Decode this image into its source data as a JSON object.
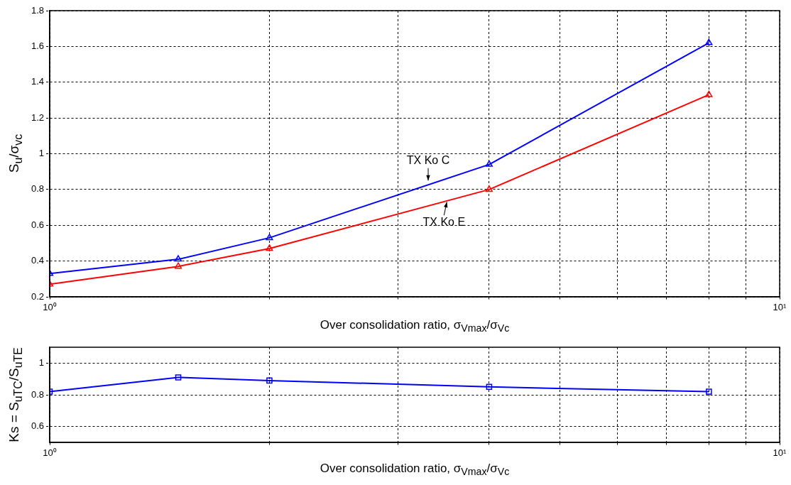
{
  "chart_data": [
    {
      "type": "line",
      "xlabel": "Over consolidation ratio,  σ$_{Vmax}$/σ$_{Vc}$",
      "ylabel": "S$_{u}$/σ$_{vc}$",
      "x": [
        1,
        1.5,
        2,
        4,
        8
      ],
      "log": "x",
      "xlim": [
        1,
        10
      ],
      "xticks": [
        {
          "value": 1,
          "label": "10⁰"
        },
        {
          "value": 2,
          "label": null
        },
        {
          "value": 3,
          "label": null
        },
        {
          "value": 4,
          "label": null
        },
        {
          "value": 5,
          "label": null
        },
        {
          "value": 6,
          "label": null
        },
        {
          "value": 7,
          "label": null
        },
        {
          "value": 8,
          "label": null
        },
        {
          "value": 9,
          "label": null
        },
        {
          "value": 10,
          "label": "10¹"
        }
      ],
      "ylim": [
        0.2,
        1.8
      ],
      "yticks": [
        0.2,
        0.4,
        0.6,
        0.8,
        1,
        1.2,
        1.4,
        1.6,
        1.8
      ],
      "grid": true,
      "legend": false,
      "marker": "triangle",
      "line_style": "solid",
      "series": [
        {
          "color": "#0000ff",
          "values": [
            0.33,
            0.41,
            0.53,
            0.94,
            1.62
          ]
        },
        {
          "color": "#ff0000",
          "values": [
            0.27,
            0.37,
            0.47,
            0.8,
            1.33
          ]
        }
      ],
      "annotations": [
        {
          "text": "TX Ko C",
          "x": 3.3,
          "y": 0.85
        },
        {
          "text": "TX Ko E",
          "x": 3.5,
          "y": 0.73
        }
      ]
    },
    {
      "type": "line",
      "xlabel": "Over consolidation ratio,  σ$_{Vmax}$/σ$_{Vc}$",
      "ylabel": "Ks = S$_{uTC}$/S$_{uTE}$",
      "x": [
        1,
        1.5,
        2,
        4,
        8
      ],
      "log": "x",
      "xlim": [
        1,
        10
      ],
      "xticks": [
        {
          "value": 1,
          "label": "10⁰"
        },
        {
          "value": 2,
          "label": null
        },
        {
          "value": 3,
          "label": null
        },
        {
          "value": 4,
          "label": null
        },
        {
          "value": 5,
          "label": null
        },
        {
          "value": 6,
          "label": null
        },
        {
          "value": 7,
          "label": null
        },
        {
          "value": 8,
          "label": null
        },
        {
          "value": 9,
          "label": null
        },
        {
          "value": 10,
          "label": "10¹"
        }
      ],
      "ylim": [
        0.5,
        1.1
      ],
      "yticks": [
        0.6,
        0.8,
        1
      ],
      "grid": true,
      "legend": false,
      "marker": "square",
      "line_style": "solid",
      "series": [
        {
          "color": "#0000ff",
          "values": [
            0.82,
            0.91,
            0.89,
            0.85,
            0.82
          ]
        }
      ]
    }
  ]
}
